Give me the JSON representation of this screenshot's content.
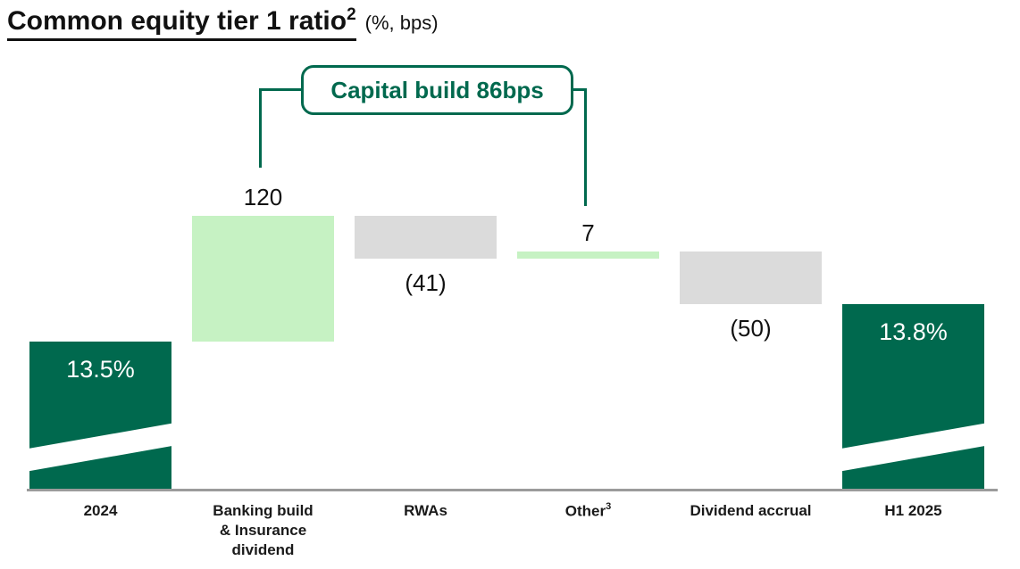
{
  "page": {
    "title": "Common equity tier 1 ratio",
    "title_footnote": "2",
    "title_suffix": "(%, bps)"
  },
  "chart_data": {
    "type": "bar",
    "subtype": "waterfall",
    "title": "Common equity tier 1 ratio (%, bps)",
    "unit": "bps",
    "start": {
      "category": "2024",
      "value": "13.5%"
    },
    "end": {
      "category": "H1 2025",
      "value": "13.8%"
    },
    "categories": [
      "2024",
      "Banking build & Insurance dividend",
      "RWAs",
      "Other",
      "Dividend accrual",
      "H1 2025"
    ],
    "bars": [
      {
        "category": "2024",
        "kind": "total",
        "value_percent": 13.5,
        "label": "13.5%",
        "label_lines": [
          "2024"
        ]
      },
      {
        "category": "Banking build & Insurance dividend",
        "kind": "increase",
        "value_bps": 120,
        "label": "120",
        "label_lines": [
          "Banking build",
          "& Insurance",
          "dividend"
        ]
      },
      {
        "category": "RWAs",
        "kind": "decrease",
        "value_bps": -41,
        "label": "(41)",
        "label_lines": [
          "RWAs"
        ]
      },
      {
        "category": "Other",
        "kind": "increase",
        "value_bps": 7,
        "label": "7",
        "label_lines": [
          "Other"
        ],
        "footnote": "3"
      },
      {
        "category": "Dividend accrual",
        "kind": "decrease",
        "value_bps": -50,
        "label": "(50)",
        "label_lines": [
          "Dividend accrual"
        ]
      },
      {
        "category": "H1 2025",
        "kind": "total",
        "value_percent": 13.8,
        "label": "13.8%",
        "label_lines": [
          "H1 2025"
        ]
      }
    ],
    "annotation": {
      "label": "Capital build 86bps",
      "value_bps": 86,
      "targets": [
        "Banking build & Insurance dividend",
        "Other"
      ]
    },
    "colors": {
      "total": "#00694E",
      "increase": "#C6F2C3",
      "decrease": "#DBDBDB",
      "annotation": "#00694E",
      "axis": "#9B9B9B"
    },
    "layout_hints": {
      "broken_axis": true,
      "grid": false,
      "legend": "none"
    }
  }
}
